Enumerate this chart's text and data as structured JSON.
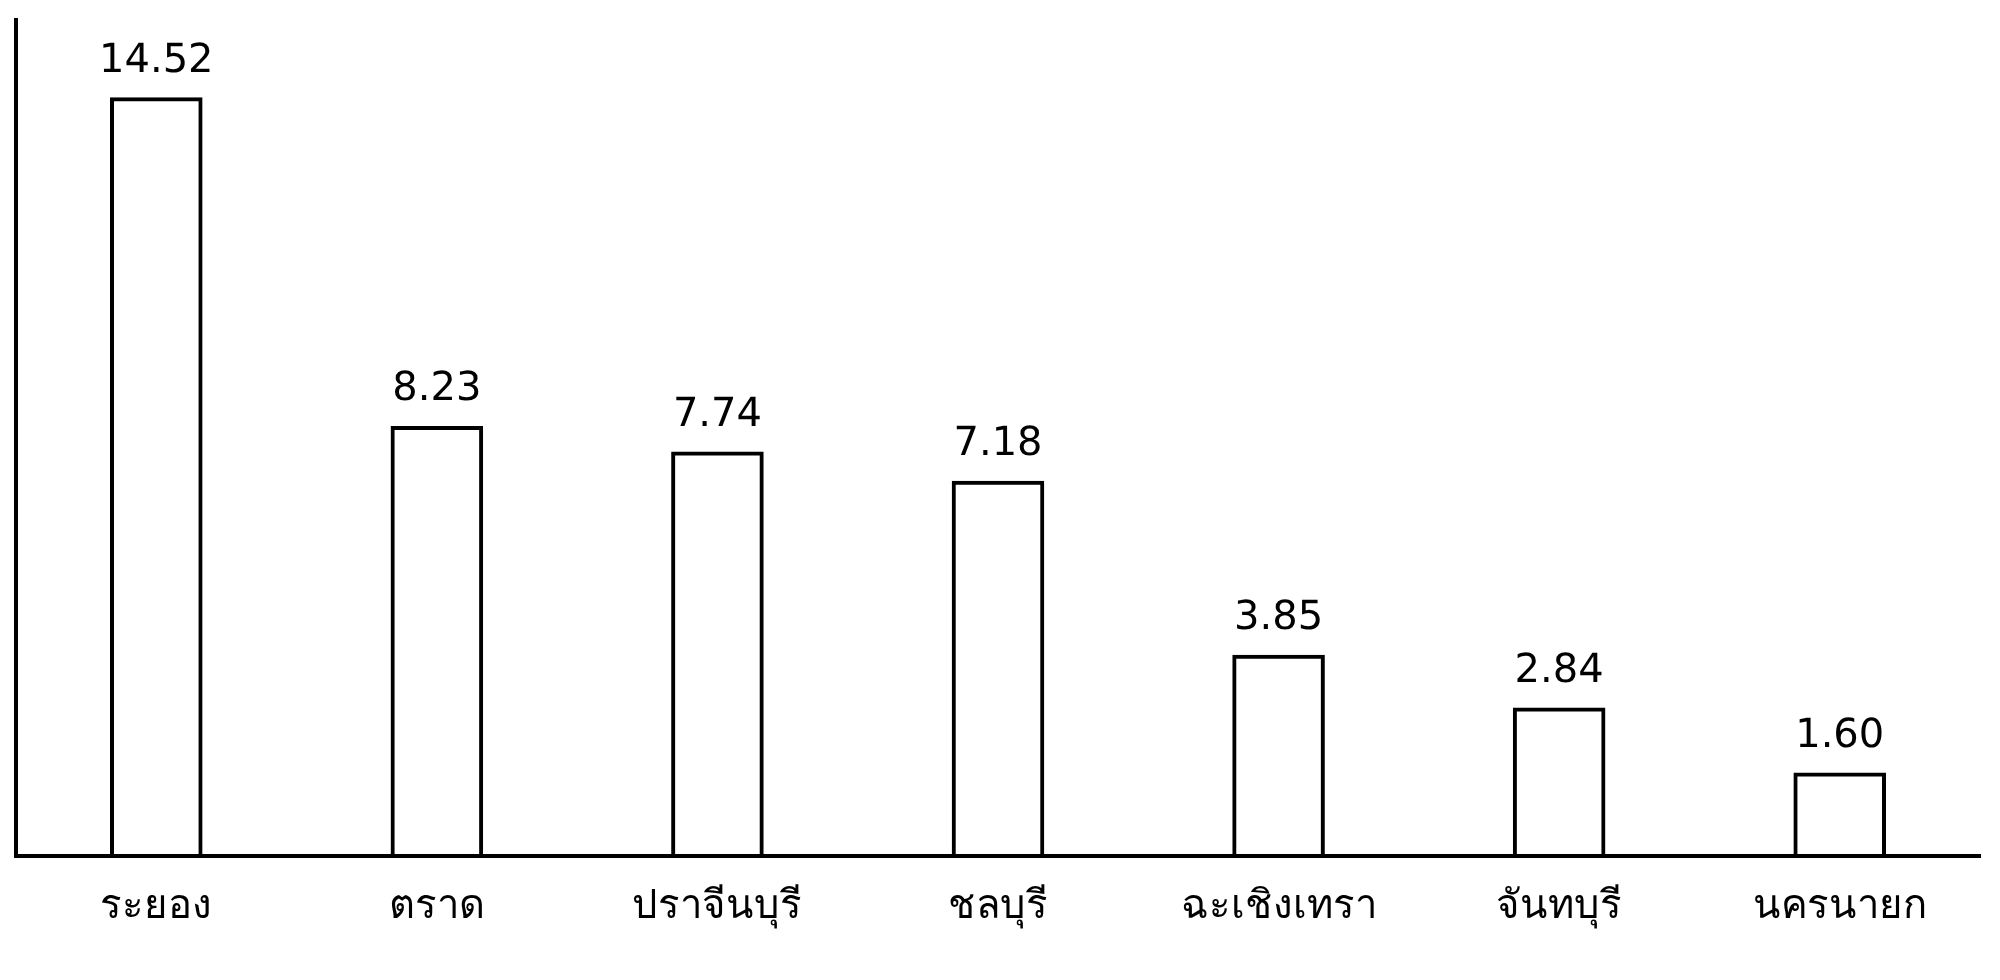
{
  "chart_data": {
    "type": "bar",
    "categories": [
      "ระยอง",
      "ตราด",
      "ปราจีนบุรี",
      "ชลบุรี",
      "ฉะเชิงเทรา",
      "จันทบุรี",
      "นครนายก"
    ],
    "values": [
      14.52,
      8.23,
      7.74,
      7.18,
      3.85,
      2.84,
      1.6
    ],
    "value_labels": [
      "14.52",
      "8.23",
      "7.74",
      "7.18",
      "3.85",
      "2.84",
      "1.60"
    ],
    "color": "#000000",
    "grid": false,
    "legend": false,
    "tick_labels": "x"
  }
}
